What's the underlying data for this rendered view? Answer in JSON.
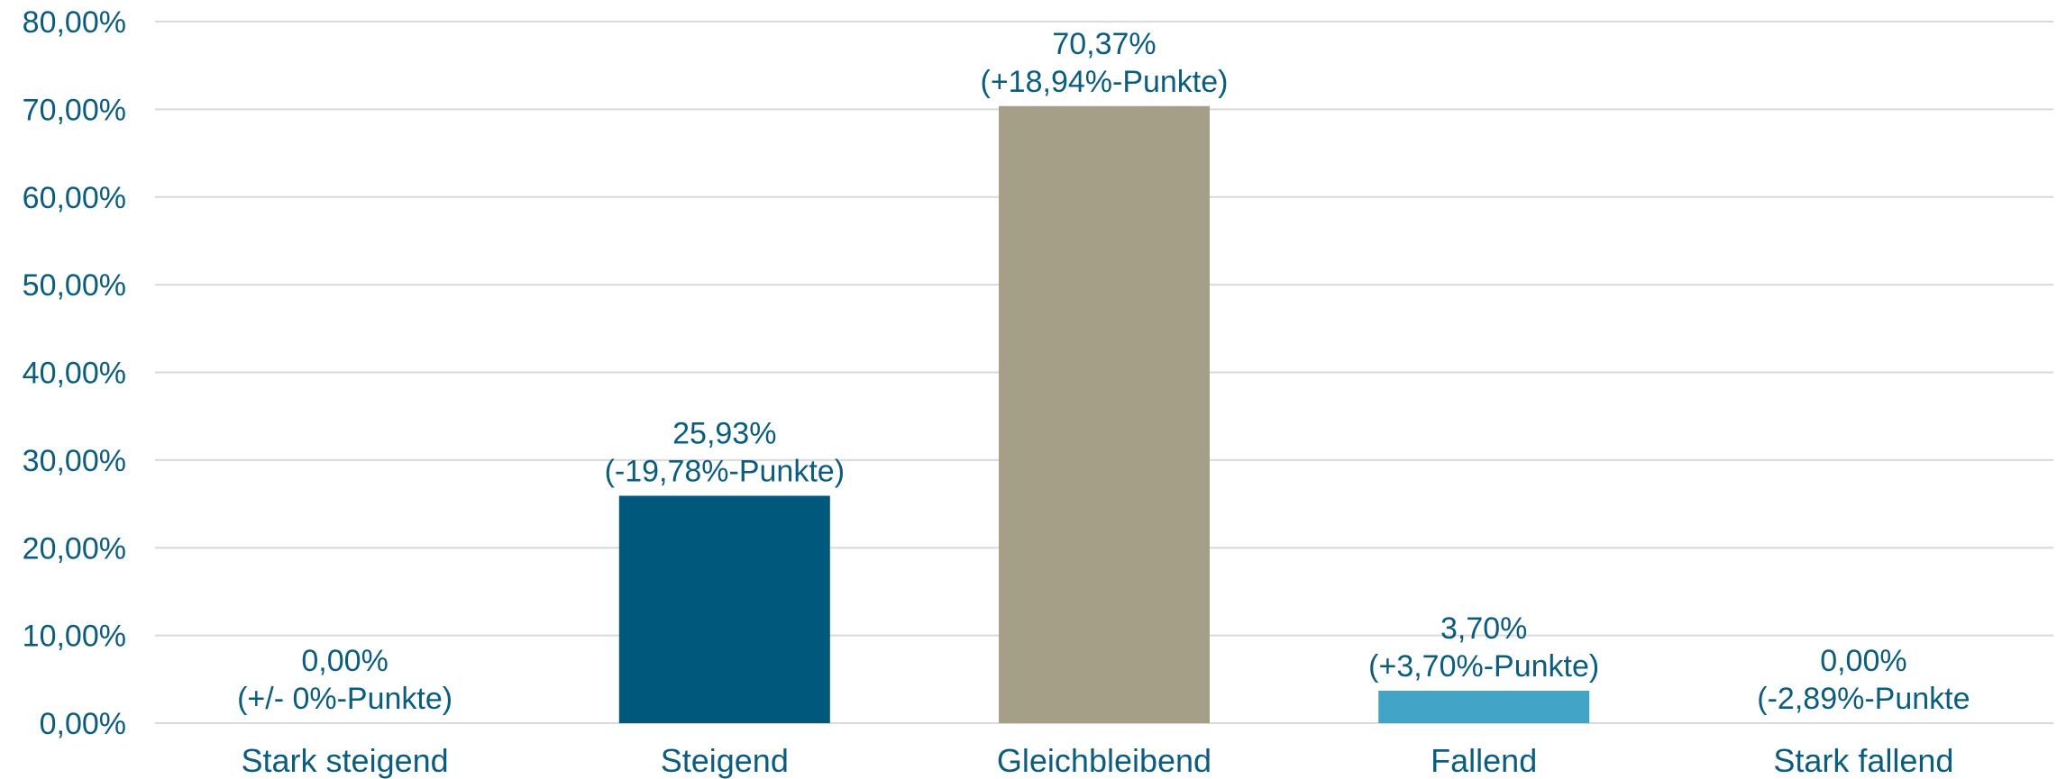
{
  "chart_data": {
    "type": "bar",
    "categories": [
      "Stark steigend",
      "Steigend",
      "Gleichbleibend",
      "Fallend",
      "Stark fallend"
    ],
    "values": [
      0.0,
      25.93,
      70.37,
      3.7,
      0.0
    ],
    "value_labels": [
      "0,00%",
      "25,93%",
      "70,37%",
      "3,70%",
      "0,00%"
    ],
    "change_labels": [
      "(+/- 0%-Punkte)",
      "(-19,78%-Punkte)",
      "(+18,94%-Punkte)",
      "(+3,70%-Punkte)",
      "(-2,89%-Punkte"
    ],
    "colors": [
      "#00587c",
      "#00587c",
      "#a59f87",
      "#42a5c8",
      "#00587c"
    ],
    "ylim": [
      0,
      80
    ],
    "yticks": [
      0,
      10,
      20,
      30,
      40,
      50,
      60,
      70,
      80
    ],
    "ytick_labels": [
      "0,00%",
      "10,00%",
      "20,00%",
      "30,00%",
      "40,00%",
      "50,00%",
      "60,00%",
      "70,00%",
      "80,00%"
    ],
    "grid": true,
    "title": "",
    "xlabel": "",
    "ylabel": ""
  }
}
